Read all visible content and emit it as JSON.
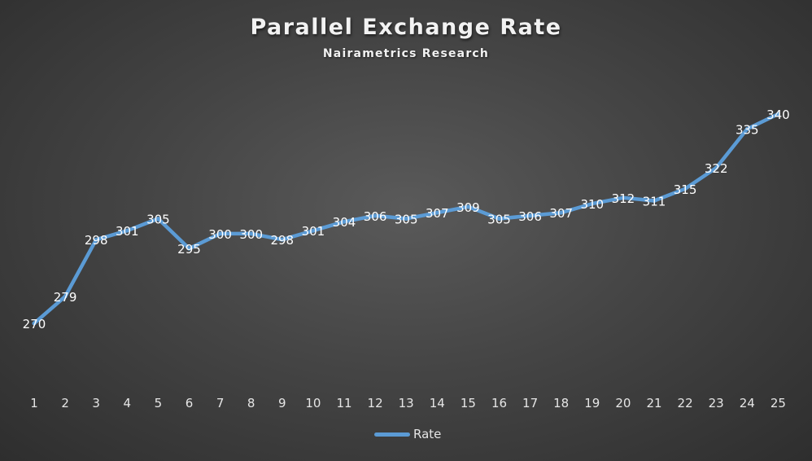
{
  "chart_data": {
    "type": "line",
    "title": "Parallel Exchange Rate",
    "subtitle": "Nairametrics Research",
    "categories": [
      "1",
      "2",
      "3",
      "4",
      "5",
      "6",
      "7",
      "8",
      "9",
      "10",
      "11",
      "12",
      "13",
      "14",
      "15",
      "16",
      "17",
      "18",
      "19",
      "20",
      "21",
      "22",
      "23",
      "24",
      "25"
    ],
    "series": [
      {
        "name": "Rate",
        "values": [
          270,
          279,
          298,
          301,
          305,
          295,
          300,
          300,
          298,
          301,
          304,
          306,
          305,
          307,
          309,
          305,
          306,
          307,
          310,
          312,
          311,
          315,
          322,
          335,
          340
        ],
        "color": "#5b9bd5"
      }
    ],
    "data_labels": true,
    "grid": false,
    "legend": "bottom",
    "y_axis_visible": false
  },
  "colors": {
    "background": "#454545",
    "line": "#5b9bd5",
    "text": "#e6e6e6"
  }
}
